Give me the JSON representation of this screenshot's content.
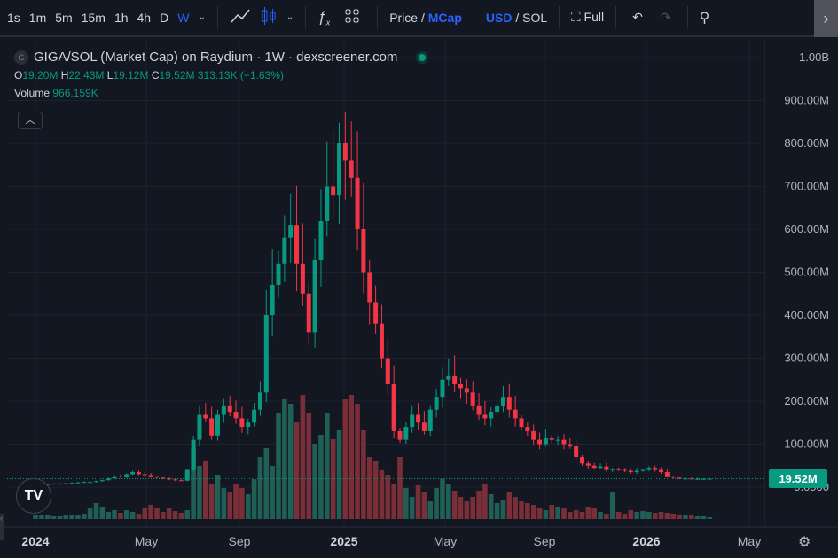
{
  "toolbar": {
    "intervals": [
      "1s",
      "1m",
      "5m",
      "15m",
      "1h",
      "4h",
      "D",
      "W"
    ],
    "active_interval": "W",
    "price_label": "Price",
    "mcap_label": "MCap",
    "slash": "/",
    "usd_label": "USD",
    "sol_label": "SOL",
    "full_label": "Full"
  },
  "legend": {
    "logo_letter": "G",
    "title": "GIGA/SOL (Market Cap) on Raydium · 1W · dexscreener.com",
    "o_label": "O",
    "o": "19.20M",
    "h_label": "H",
    "h": "22.43M",
    "l_label": "L",
    "l": "19.12M",
    "c_label": "C",
    "c": "19.52M",
    "change": "313.13K (+1.63%)",
    "volume_label": "Volume",
    "volume": "966.159K"
  },
  "price_axis": [
    "1.00B",
    "900.00M",
    "800.00M",
    "700.00M",
    "600.00M",
    "500.00M",
    "400.00M",
    "300.00M",
    "200.00M",
    "100.00M",
    "0.0000"
  ],
  "current_price": "19.52M",
  "time_axis": [
    {
      "label": "2024",
      "bold": true
    },
    {
      "label": "May"
    },
    {
      "label": "Sep"
    },
    {
      "label": "2025",
      "bold": true
    },
    {
      "label": "May"
    },
    {
      "label": "Sep"
    },
    {
      "label": "2026",
      "bold": true
    },
    {
      "label": "May"
    }
  ],
  "colors": {
    "up": "#089981",
    "down": "#f23645",
    "vol_up": "#1f5f55",
    "vol_down": "#7a2e38",
    "accent": "#2962ff"
  },
  "chart_data": {
    "type": "candlestick",
    "unit": "USD millions (market cap), weekly",
    "y_range": [
      0,
      1000
    ],
    "first_open": 4,
    "closes": [
      5,
      6,
      7,
      8,
      8,
      9,
      10,
      11,
      12,
      12,
      14,
      16,
      20,
      25,
      24,
      30,
      35,
      30,
      28,
      25,
      22,
      20,
      18,
      16,
      15,
      40,
      110,
      170,
      160,
      120,
      170,
      190,
      175,
      160,
      140,
      150,
      180,
      220,
      400,
      470,
      520,
      580,
      610,
      520,
      450,
      360,
      530,
      620,
      700,
      680,
      800,
      760,
      720,
      600,
      500,
      430,
      380,
      300,
      240,
      130,
      110,
      140,
      170,
      150,
      130,
      180,
      210,
      250,
      260,
      240,
      230,
      220,
      190,
      170,
      160,
      175,
      190,
      210,
      180,
      160,
      140,
      130,
      110,
      100,
      115,
      110,
      110,
      100,
      95,
      70,
      55,
      50,
      45,
      48,
      40,
      42,
      40,
      38,
      35,
      38,
      40,
      45,
      40,
      35,
      25,
      22,
      20,
      20,
      19,
      19,
      19.2,
      19.52
    ],
    "volumes": [
      5,
      4,
      4,
      3,
      3,
      4,
      4,
      5,
      6,
      12,
      18,
      14,
      8,
      10,
      7,
      10,
      8,
      6,
      12,
      16,
      12,
      8,
      12,
      9,
      7,
      10,
      80,
      60,
      65,
      40,
      50,
      35,
      30,
      40,
      35,
      28,
      45,
      70,
      80,
      60,
      120,
      135,
      130,
      110,
      140,
      120,
      85,
      95,
      120,
      90,
      100,
      135,
      140,
      130,
      100,
      70,
      65,
      55,
      50,
      40,
      70,
      35,
      25,
      38,
      30,
      20,
      35,
      45,
      40,
      32,
      25,
      20,
      25,
      32,
      40,
      28,
      18,
      22,
      30,
      25,
      20,
      18,
      16,
      12,
      10,
      16,
      14,
      12,
      8,
      10,
      8,
      14,
      12,
      8,
      6,
      30,
      8,
      6,
      10,
      8,
      9,
      8,
      7,
      8,
      7,
      6,
      5,
      5,
      4,
      3,
      3,
      2
    ]
  }
}
